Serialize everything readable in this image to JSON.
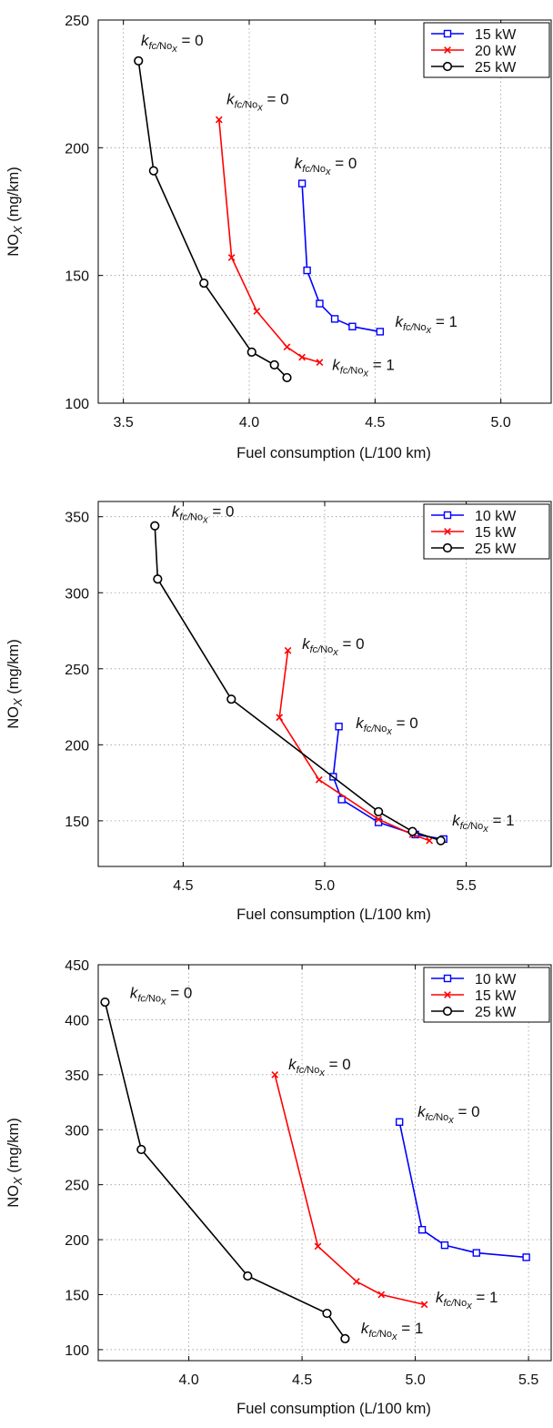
{
  "chart_data": [
    {
      "type": "line",
      "xlabel": "Fuel consumption (L/100 km)",
      "ylabel_main": "NO",
      "ylabel_sub": "X",
      "ylabel_rest": " (mg/km)",
      "xlim": [
        3.4,
        5.2
      ],
      "ylim": [
        100,
        250
      ],
      "xticks": [
        3.5,
        4.0,
        4.5,
        5.0
      ],
      "xtick_labels": [
        "3.5",
        "4.0",
        "4.5",
        "5.0"
      ],
      "yticks": [
        100,
        150,
        200,
        250
      ],
      "ytick_labels": [
        "100",
        "150",
        "200",
        "250"
      ],
      "grid": true,
      "legend_position": "top-right",
      "series": [
        {
          "name": "15 kW",
          "color": "#0000ff",
          "marker": "square",
          "points": [
            [
              4.21,
              186
            ],
            [
              4.23,
              152
            ],
            [
              4.28,
              139
            ],
            [
              4.34,
              133
            ],
            [
              4.41,
              130
            ],
            [
              4.52,
              128
            ]
          ]
        },
        {
          "name": "20 kW",
          "color": "#ff0000",
          "marker": "x",
          "points": [
            [
              3.88,
              211
            ],
            [
              3.93,
              157
            ],
            [
              4.03,
              136
            ],
            [
              4.15,
              122
            ],
            [
              4.21,
              118
            ],
            [
              4.28,
              116
            ]
          ]
        },
        {
          "name": "25 kW",
          "color": "#000000",
          "marker": "circle",
          "points": [
            [
              3.56,
              234
            ],
            [
              3.62,
              191
            ],
            [
              3.82,
              147
            ],
            [
              4.01,
              120
            ],
            [
              4.1,
              115
            ],
            [
              4.15,
              110
            ]
          ]
        }
      ],
      "annotations": [
        {
          "italic": "k",
          "sub": "fc/No",
          "subsub": "x",
          "tail": " = 0",
          "x": 3.57,
          "y": 240
        },
        {
          "italic": "k",
          "sub": "fc/No",
          "subsub": "x",
          "tail": " = 0",
          "x": 3.91,
          "y": 217
        },
        {
          "italic": "k",
          "sub": "fc/No",
          "subsub": "x",
          "tail": " = 0",
          "x": 4.18,
          "y": 192
        },
        {
          "italic": "k",
          "sub": "fc/No",
          "subsub": "x",
          "tail": " = 1",
          "x": 4.58,
          "y": 130
        },
        {
          "italic": "k",
          "sub": "fc/No",
          "subsub": "x",
          "tail": " = 1",
          "x": 4.33,
          "y": 113
        }
      ]
    },
    {
      "type": "line",
      "xlabel": "Fuel consumption (L/100 km)",
      "ylabel_main": "NO",
      "ylabel_sub": "X",
      "ylabel_rest": " (mg/km)",
      "xlim": [
        4.2,
        5.8
      ],
      "ylim": [
        120,
        360
      ],
      "xticks": [
        4.5,
        5.0,
        5.5
      ],
      "xtick_labels": [
        "4.5",
        "5.0",
        "5.5"
      ],
      "yticks": [
        150,
        200,
        250,
        300,
        350
      ],
      "ytick_labels": [
        "150",
        "200",
        "250",
        "300",
        "350"
      ],
      "grid": true,
      "legend_position": "top-right",
      "series": [
        {
          "name": "10 kW",
          "color": "#0000ff",
          "marker": "square",
          "points": [
            [
              5.05,
              212
            ],
            [
              5.03,
              179
            ],
            [
              5.06,
              164
            ],
            [
              5.19,
              149
            ],
            [
              5.32,
              141
            ],
            [
              5.42,
              138
            ]
          ]
        },
        {
          "name": "15 kW",
          "color": "#ff0000",
          "marker": "x",
          "points": [
            [
              4.87,
              262
            ],
            [
              4.84,
              218
            ],
            [
              4.98,
              177
            ],
            [
              5.19,
              151
            ],
            [
              5.31,
              141
            ],
            [
              5.37,
              137
            ]
          ]
        },
        {
          "name": "25 kW",
          "color": "#000000",
          "marker": "circle",
          "points": [
            [
              4.4,
              344
            ],
            [
              4.41,
              309
            ],
            [
              4.67,
              230
            ],
            [
              5.19,
              156
            ],
            [
              5.31,
              143
            ],
            [
              5.41,
              137
            ]
          ]
        }
      ],
      "annotations": [
        {
          "italic": "k",
          "sub": "fc/No",
          "subsub": "x",
          "tail": " = 0",
          "x": 4.46,
          "y": 350
        },
        {
          "italic": "k",
          "sub": "fc/No",
          "subsub": "x",
          "tail": " = 0",
          "x": 4.92,
          "y": 263
        },
        {
          "italic": "k",
          "sub": "fc/No",
          "subsub": "x",
          "tail": " = 0",
          "x": 5.11,
          "y": 211
        },
        {
          "italic": "k",
          "sub": "fc/No",
          "subsub": "x",
          "tail": " = 1",
          "x": 5.45,
          "y": 147
        }
      ]
    },
    {
      "type": "line",
      "xlabel": "Fuel consumption (L/100 km)",
      "ylabel_main": "NO",
      "ylabel_sub": "X",
      "ylabel_rest": " (mg/km)",
      "xlim": [
        3.6,
        5.6
      ],
      "ylim": [
        90,
        450
      ],
      "xticks": [
        4.0,
        4.5,
        5.0,
        5.5
      ],
      "xtick_labels": [
        "4.0",
        "4.5",
        "5.0",
        "5.5"
      ],
      "yticks": [
        100,
        150,
        200,
        250,
        300,
        350,
        400,
        450
      ],
      "ytick_labels": [
        "100",
        "150",
        "200",
        "250",
        "300",
        "350",
        "400",
        "450"
      ],
      "grid": true,
      "legend_position": "top-right",
      "series": [
        {
          "name": "10 kW",
          "color": "#0000ff",
          "marker": "square",
          "points": [
            [
              4.93,
              307
            ],
            [
              5.03,
              209
            ],
            [
              5.13,
              195
            ],
            [
              5.27,
              188
            ],
            [
              5.49,
              184
            ]
          ]
        },
        {
          "name": "15 kW",
          "color": "#ff0000",
          "marker": "x",
          "points": [
            [
              4.38,
              350
            ],
            [
              4.57,
              194
            ],
            [
              4.74,
              162
            ],
            [
              4.85,
              150
            ],
            [
              5.04,
              141
            ]
          ]
        },
        {
          "name": "25 kW",
          "color": "#000000",
          "marker": "circle",
          "points": [
            [
              3.63,
              416
            ],
            [
              3.79,
              282
            ],
            [
              4.26,
              167
            ],
            [
              4.61,
              133
            ],
            [
              4.69,
              110
            ]
          ]
        }
      ],
      "annotations": [
        {
          "italic": "k",
          "sub": "fc/No",
          "subsub": "x",
          "tail": " = 0",
          "x": 3.74,
          "y": 420
        },
        {
          "italic": "k",
          "sub": "fc/No",
          "subsub": "x",
          "tail": " = 0",
          "x": 4.44,
          "y": 355
        },
        {
          "italic": "k",
          "sub": "fc/No",
          "subsub": "x",
          "tail": " = 0",
          "x": 5.01,
          "y": 312
        },
        {
          "italic": "k",
          "sub": "fc/No",
          "subsub": "x",
          "tail": " = 1",
          "x": 5.09,
          "y": 143
        },
        {
          "italic": "k",
          "sub": "fc/No",
          "subsub": "x",
          "tail": " = 1",
          "x": 4.76,
          "y": 115
        }
      ]
    }
  ]
}
